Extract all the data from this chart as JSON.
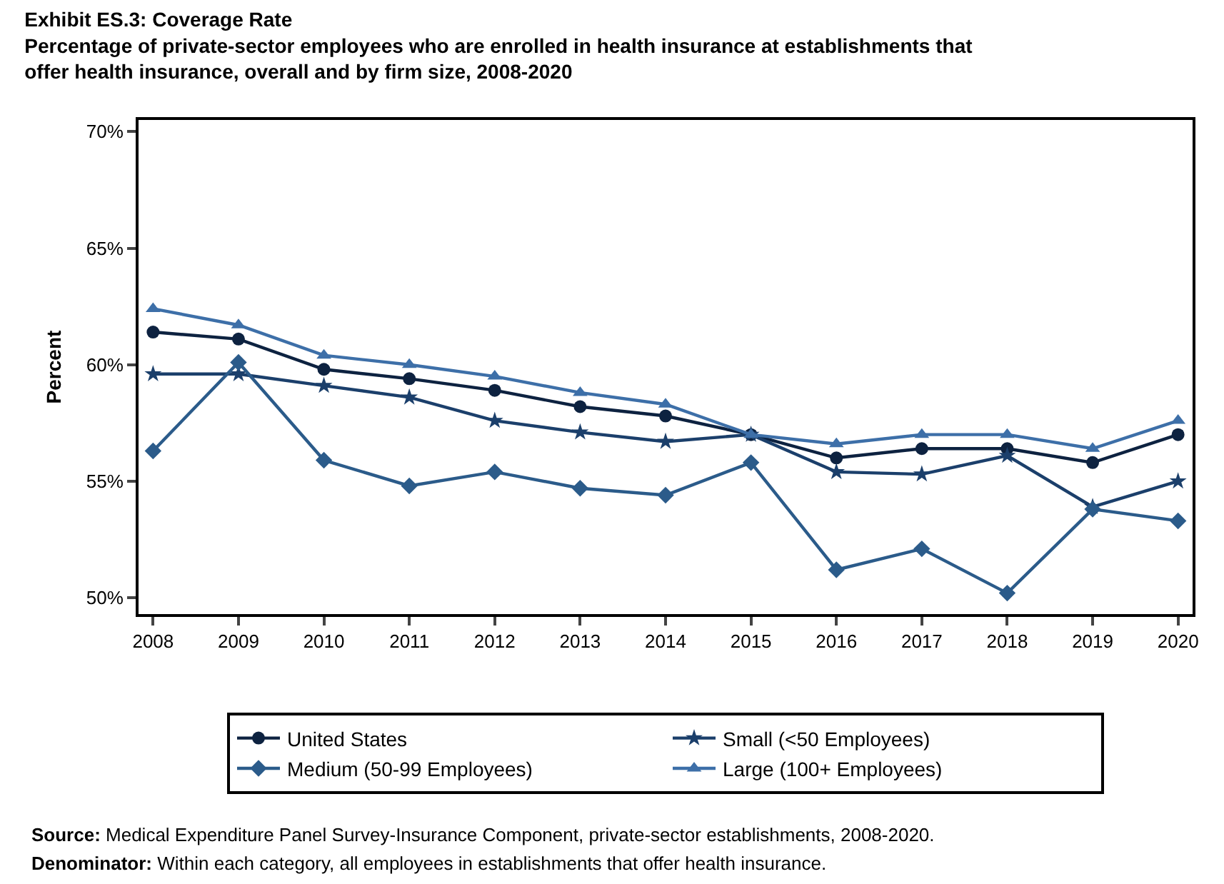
{
  "chart_data": {
    "type": "line",
    "title": "Exhibit ES.3: Coverage Rate",
    "subtitle": "Percentage of private-sector employees who are enrolled in health insurance at establishments that offer health insurance, overall and by firm size, 2008-2020",
    "ylabel": "Percent",
    "x": [
      2008,
      2009,
      2010,
      2011,
      2012,
      2013,
      2014,
      2015,
      2016,
      2017,
      2018,
      2019,
      2020
    ],
    "series": [
      {
        "name": "United States",
        "color": "#0d2240",
        "marker": "circle",
        "values": [
          61.4,
          61.1,
          59.8,
          59.4,
          58.9,
          58.2,
          57.8,
          57.0,
          56.0,
          56.4,
          56.4,
          55.8,
          57.0
        ]
      },
      {
        "name": "Small (<50 Employees)",
        "color": "#1b3f6b",
        "marker": "star",
        "values": [
          59.6,
          59.6,
          59.1,
          58.6,
          57.6,
          57.1,
          56.7,
          57.0,
          55.4,
          55.3,
          56.1,
          53.9,
          55.0
        ]
      },
      {
        "name": "Medium (50-99 Employees)",
        "color": "#2b5b8a",
        "marker": "diamond",
        "values": [
          56.3,
          60.1,
          55.9,
          54.8,
          55.4,
          54.7,
          54.4,
          55.8,
          51.2,
          52.1,
          50.2,
          53.8,
          53.3
        ]
      },
      {
        "name": "Large (100+ Employees)",
        "color": "#3d6fa8",
        "marker": "triangle",
        "values": [
          62.4,
          61.7,
          60.4,
          60.0,
          59.5,
          58.8,
          58.3,
          57.0,
          56.6,
          57.0,
          57.0,
          56.4,
          57.6
        ]
      }
    ],
    "xlim": [
      2007.83,
      2020.17
    ],
    "xticks": [
      2008,
      2009,
      2010,
      2011,
      2012,
      2013,
      2014,
      2015,
      2016,
      2017,
      2018,
      2019,
      2020
    ],
    "ylim": [
      49.3,
      70.5
    ],
    "yticks": [
      {
        "value": 50,
        "label": "50%"
      },
      {
        "value": 55,
        "label": "55%"
      },
      {
        "value": 60,
        "label": "60%"
      },
      {
        "value": 65,
        "label": "65%"
      },
      {
        "value": 70,
        "label": "70%"
      }
    ],
    "legend": "bottom",
    "line_style": "solid",
    "annotations": [
      "Source: Medical Expenditure Panel Survey-Insurance Component, private-sector establishments, 2008-2020.",
      "Denominator: Within each category, all employees in establishments that offer health insurance."
    ]
  }
}
